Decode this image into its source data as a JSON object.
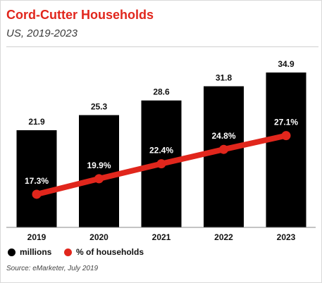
{
  "chart_data": {
    "type": "bar",
    "title": "Cord-Cutter Households",
    "subtitle": "US, 2019-2023",
    "categories": [
      "2019",
      "2020",
      "2021",
      "2022",
      "2023"
    ],
    "series": [
      {
        "name": "millions",
        "type": "bar",
        "color": "#000000",
        "values": [
          21.9,
          25.3,
          28.6,
          31.8,
          34.9
        ],
        "labels": [
          "21.9",
          "25.3",
          "28.6",
          "31.8",
          "34.9"
        ]
      },
      {
        "name": "% of households",
        "type": "line",
        "color": "#e1261c",
        "values": [
          17.3,
          19.9,
          22.4,
          24.8,
          27.1
        ],
        "labels": [
          "17.3%",
          "19.9%",
          "22.4%",
          "24.8%",
          "27.1%"
        ]
      }
    ],
    "legend_position": "bottom-left",
    "grid": false,
    "source": "Source: eMarketer, July 2019"
  }
}
